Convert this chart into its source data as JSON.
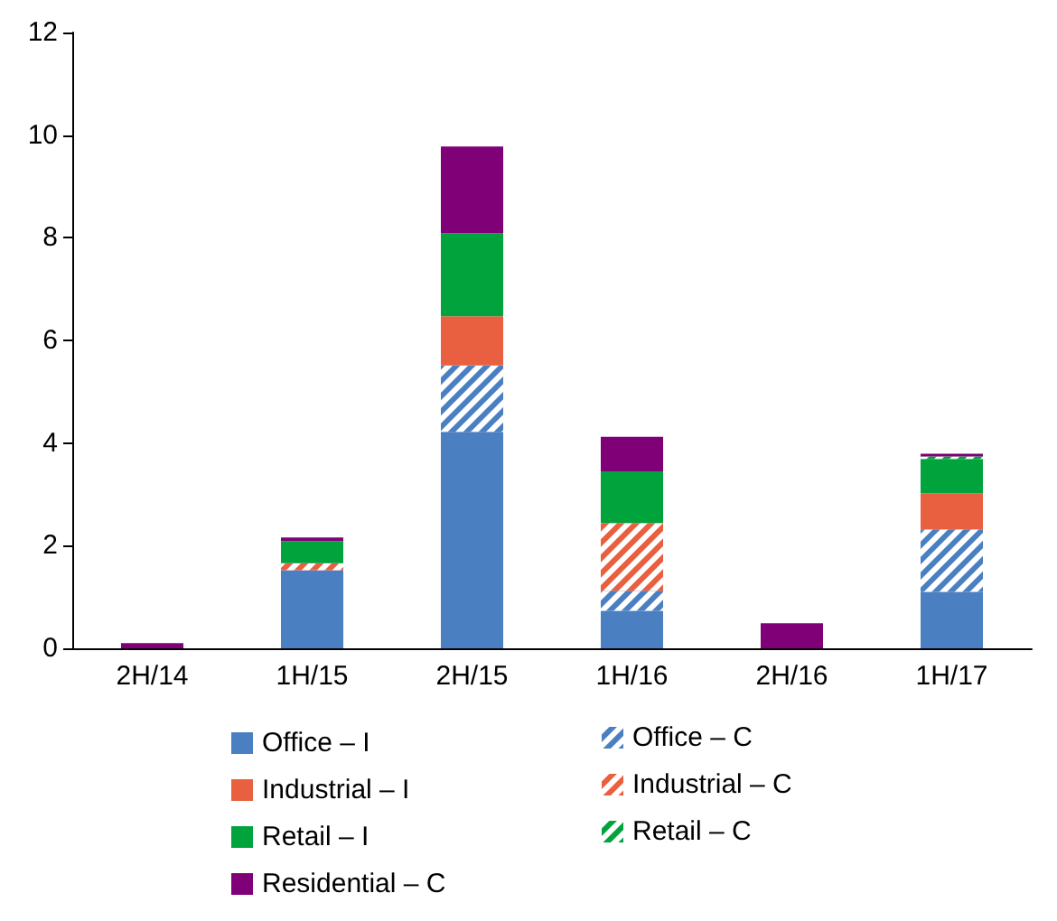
{
  "chart_data": {
    "type": "bar",
    "stacked": true,
    "categories": [
      "2H/14",
      "1H/15",
      "2H/15",
      "1H/16",
      "2H/16",
      "1H/17"
    ],
    "series": [
      {
        "name": "Office – I",
        "color": "#4a7fc1",
        "values": [
          null,
          1.52,
          4.22,
          0.73,
          null,
          1.1
        ]
      },
      {
        "name": "Office – C",
        "color": "#4a7fc1",
        "values": [
          null,
          null,
          1.29,
          0.39,
          null,
          1.22
        ]
      },
      {
        "name": "Industrial – I",
        "color": "#e86040",
        "values": [
          null,
          null,
          0.96,
          null,
          null,
          0.7
        ]
      },
      {
        "name": "Industrial – C",
        "color": "#e86040",
        "values": [
          null,
          0.14,
          null,
          1.32,
          null,
          null
        ]
      },
      {
        "name": "Retail – I",
        "color": "#00a33c",
        "values": [
          null,
          0.43,
          1.62,
          1.01,
          null,
          0.67
        ]
      },
      {
        "name": "Retail – C",
        "color": "#00a33c",
        "values": [
          null,
          null,
          null,
          null,
          null,
          0.05
        ]
      },
      {
        "name": "Residential – C",
        "color": "#800078",
        "values": [
          0.1,
          0.07,
          1.69,
          0.67,
          0.49,
          0.05
        ]
      }
    ],
    "ylim": [
      0,
      12
    ],
    "yticks": [
      0,
      2,
      4,
      6,
      8,
      10,
      12
    ],
    "grid": false,
    "legend": "bottom"
  }
}
